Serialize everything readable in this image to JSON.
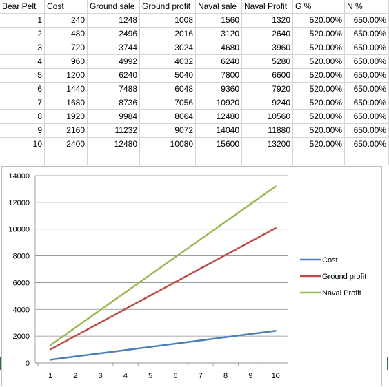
{
  "sheet": {
    "headers": [
      "Bear Pelt",
      "Cost",
      "Ground sale",
      "Ground profit",
      "Naval sale",
      "Naval Profit",
      "G %",
      "N %"
    ],
    "rows": [
      [
        "1",
        "240",
        "1248",
        "1008",
        "1560",
        "1320",
        "520.00%",
        "650.00%"
      ],
      [
        "2",
        "480",
        "2496",
        "2016",
        "3120",
        "2640",
        "520.00%",
        "650.00%"
      ],
      [
        "3",
        "720",
        "3744",
        "3024",
        "4680",
        "3960",
        "520.00%",
        "650.00%"
      ],
      [
        "4",
        "960",
        "4992",
        "4032",
        "6240",
        "5280",
        "520.00%",
        "650.00%"
      ],
      [
        "5",
        "1200",
        "6240",
        "5040",
        "7800",
        "6600",
        "520.00%",
        "650.00%"
      ],
      [
        "6",
        "1440",
        "7488",
        "6048",
        "9360",
        "7920",
        "520.00%",
        "650.00%"
      ],
      [
        "7",
        "1680",
        "8736",
        "7056",
        "10920",
        "9240",
        "520.00%",
        "650.00%"
      ],
      [
        "8",
        "1920",
        "9984",
        "8064",
        "12480",
        "10560",
        "520.00%",
        "650.00%"
      ],
      [
        "9",
        "2160",
        "11232",
        "9072",
        "14040",
        "11880",
        "520.00%",
        "650.00%"
      ],
      [
        "10",
        "2400",
        "12480",
        "10080",
        "15600",
        "13200",
        "520.00%",
        "650.00%"
      ]
    ]
  },
  "chart_data": {
    "type": "line",
    "x": [
      1,
      2,
      3,
      4,
      5,
      6,
      7,
      8,
      9,
      10
    ],
    "series": [
      {
        "name": "Cost",
        "color": "#4a7ebb",
        "values": [
          240,
          480,
          720,
          960,
          1200,
          1440,
          1680,
          1920,
          2160,
          2400
        ]
      },
      {
        "name": "Ground profit",
        "color": "#be4b48",
        "values": [
          1008,
          2016,
          3024,
          4032,
          5040,
          6048,
          7056,
          8064,
          9072,
          10080
        ]
      },
      {
        "name": "Naval Profit",
        "color": "#98b954",
        "values": [
          1320,
          2640,
          3960,
          5280,
          6600,
          7920,
          9240,
          10560,
          11880,
          13200
        ]
      }
    ],
    "ylim": [
      0,
      14000
    ],
    "yticks": [
      0,
      2000,
      4000,
      6000,
      8000,
      10000,
      12000,
      14000
    ],
    "xticks": [
      1,
      2,
      3,
      4,
      5,
      6,
      7,
      8,
      9,
      10
    ],
    "grid": "horizontal",
    "legend": "right",
    "title": "",
    "xlabel": "",
    "ylabel": ""
  }
}
